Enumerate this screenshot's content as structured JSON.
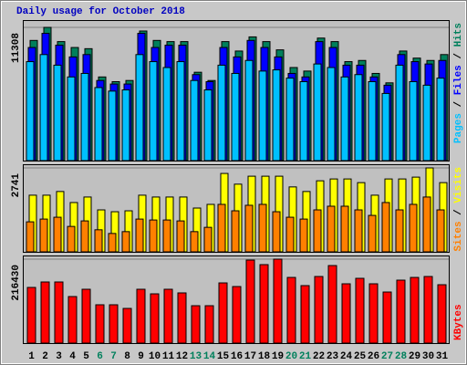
{
  "chart_data": [
    {
      "type": "bar",
      "title": "Daily usage for October 2018",
      "categories": [
        "1",
        "2",
        "3",
        "4",
        "5",
        "6",
        "7",
        "8",
        "9",
        "10",
        "11",
        "12",
        "13",
        "14",
        "15",
        "16",
        "17",
        "18",
        "19",
        "20",
        "21",
        "22",
        "23",
        "24",
        "25",
        "26",
        "27",
        "28",
        "29",
        "30",
        "31"
      ],
      "category_colors": [
        "#000000",
        "#000000",
        "#000000",
        "#000000",
        "#000000",
        "#00805c",
        "#00805c",
        "#000000",
        "#000000",
        "#000000",
        "#000000",
        "#000000",
        "#00805c",
        "#00805c",
        "#000000",
        "#000000",
        "#000000",
        "#000000",
        "#000000",
        "#00805c",
        "#00805c",
        "#000000",
        "#000000",
        "#000000",
        "#000000",
        "#000000",
        "#00805c",
        "#00805c",
        "#000000",
        "#000000",
        "#000000"
      ],
      "legend_separator": " / ",
      "ylim": [
        0,
        11308
      ],
      "yticks": [
        11308
      ],
      "series": [
        {
          "name": "Pages",
          "color": "#00c0ff",
          "values": [
            8400,
            9000,
            8100,
            7100,
            7400,
            6200,
            5900,
            6000,
            9000,
            8400,
            7900,
            8400,
            6800,
            6000,
            8100,
            7400,
            8500,
            7600,
            7700,
            7000,
            6700,
            8200,
            7900,
            7100,
            7300,
            6700,
            5700,
            8100,
            6700,
            6400,
            7000
          ]
        },
        {
          "name": "Files",
          "color": "#0000ff",
          "values": [
            9600,
            10800,
            9800,
            8800,
            9000,
            6800,
            6500,
            6500,
            10800,
            9600,
            9800,
            9800,
            7300,
            6700,
            9600,
            8800,
            10200,
            9600,
            8800,
            7400,
            7100,
            10100,
            9600,
            8100,
            8100,
            7100,
            6400,
            9000,
            8400,
            8200,
            8500
          ]
        },
        {
          "name": "Hits",
          "color": "#00805c",
          "values": [
            10200,
            11308,
            10100,
            9600,
            9500,
            7100,
            6700,
            6800,
            11000,
            10200,
            10100,
            10100,
            7500,
            6800,
            10100,
            9300,
            10500,
            10100,
            9400,
            7900,
            7600,
            10400,
            10100,
            8400,
            8500,
            7400,
            6600,
            9300,
            8700,
            8500,
            9000
          ]
        }
      ]
    },
    {
      "type": "bar",
      "ylim": [
        0,
        2741
      ],
      "yticks": [
        2741
      ],
      "series": [
        {
          "name": "Sites",
          "color": "#ff8000",
          "values": [
            980,
            1070,
            1130,
            830,
            1010,
            720,
            600,
            660,
            1070,
            1040,
            1040,
            1010,
            660,
            800,
            1550,
            1340,
            1520,
            1550,
            1310,
            1130,
            1070,
            1370,
            1490,
            1490,
            1370,
            1190,
            1610,
            1370,
            1550,
            1790,
            1370
          ]
        },
        {
          "name": "Visits",
          "color": "#ffff00",
          "values": [
            1850,
            1850,
            1970,
            1610,
            1790,
            1370,
            1310,
            1340,
            1850,
            1790,
            1790,
            1790,
            1430,
            1550,
            2560,
            2210,
            2470,
            2470,
            2470,
            2120,
            1970,
            2320,
            2380,
            2380,
            2260,
            1850,
            2380,
            2380,
            2440,
            2741,
            2260
          ]
        }
      ]
    },
    {
      "type": "bar",
      "ylim": [
        0,
        216430
      ],
      "yticks": [
        216430
      ],
      "series": [
        {
          "name": "KBytes",
          "color": "#ff0000",
          "values": [
            143500,
            157600,
            157600,
            120000,
            138800,
            98800,
            98800,
            89400,
            138800,
            127000,
            138800,
            129400,
            96400,
            96400,
            155200,
            145800,
            214000,
            202300,
            216430,
            169300,
            148200,
            171700,
            199900,
            152900,
            167000,
            152900,
            131700,
            162300,
            169300,
            171700,
            150500
          ]
        }
      ]
    }
  ]
}
